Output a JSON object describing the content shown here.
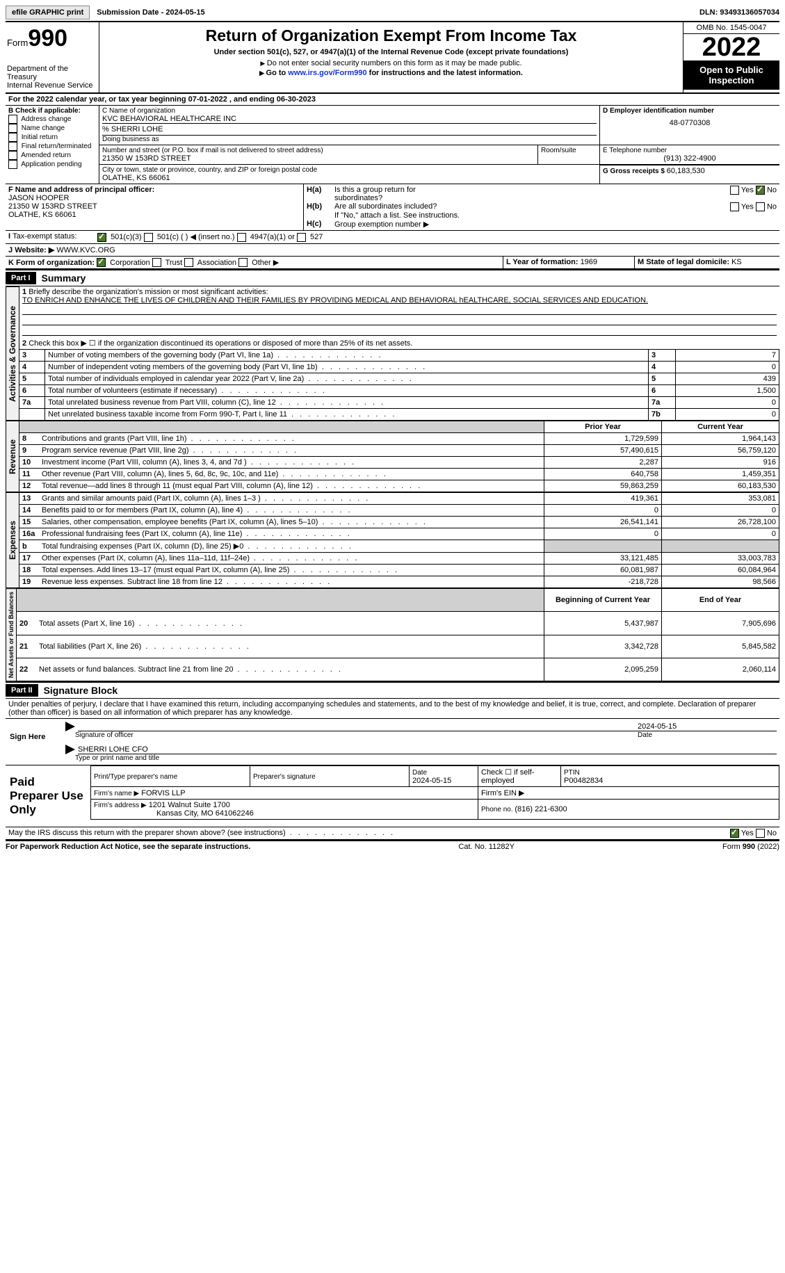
{
  "topbar": {
    "btn1": "efile GRAPHIC print",
    "subdate_label": "Submission Date - ",
    "subdate": "2024-05-15",
    "dln_label": "DLN: ",
    "dln": "93493136057034"
  },
  "header": {
    "form_label": "Form",
    "form_num": "990",
    "dept": "Department of the Treasury",
    "irs": "Internal Revenue Service",
    "title": "Return of Organization Exempt From Income Tax",
    "sub": "Under section 501(c), 527, or 4947(a)(1) of the Internal Revenue Code (except private foundations)",
    "line2": "Do not enter social security numbers on this form as it may be made public.",
    "line3a": "Go to ",
    "line3link": "www.irs.gov/Form990",
    "line3b": " for instructions and the latest information.",
    "omb": "OMB No. 1545-0047",
    "year": "2022",
    "otp": "Open to Public Inspection"
  },
  "sectionA": {
    "a_line": "For the 2022 calendar year, or tax year beginning 07-01-2022     , and ending 06-30-2023",
    "b_label": "B Check if applicable:",
    "b_opts": [
      "Address change",
      "Name change",
      "Initial return",
      "Final return/terminated",
      "Amended return",
      "Application pending"
    ],
    "c_label": "C Name of organization",
    "org": "KVC BEHAVIORAL HEALTHCARE INC",
    "care": "% SHERRI LOHE",
    "dba": "Doing business as",
    "street_label": "Number and street (or P.O. box if mail is not delivered to street address)",
    "room": "Room/suite",
    "street": "21350 W 153RD STREET",
    "city_label": "City or town, state or province, country, and ZIP or foreign postal code",
    "city": "OLATHE, KS  66061",
    "d_label": "D Employer identification number",
    "ein": "48-0770308",
    "e_label": "E Telephone number",
    "phone": "(913) 322-4900",
    "g_label": "G Gross receipts $ ",
    "gross": "60,183,530",
    "f_label": "F  Name and address of principal officer:",
    "officer": "JASON HOOPER",
    "officer_addr1": "21350 W 153RD STREET",
    "officer_addr2": "OLATHE, KS  66061",
    "h_a": "Is this a group return for",
    "h_a2": "subordinates?",
    "h_b": "Are all subordinates included?",
    "h_note": "If \"No,\" attach a list. See instructions.",
    "h_c": "Group exemption number ▶",
    "yes": "Yes",
    "no": "No",
    "i_label": "Tax-exempt status:",
    "i_501c3": "501(c)(3)",
    "i_501c": "501(c) (  ) ◀ (insert no.)",
    "i_4947": "4947(a)(1) or",
    "i_527": "527",
    "j_label": "Website: ▶",
    "website": "WWW.KVC.ORG",
    "k_label": "K Form of organization:",
    "k_corp": "Corporation",
    "k_trust": "Trust",
    "k_assoc": "Association",
    "k_other": "Other ▶",
    "l_label": "L Year of formation: ",
    "l_val": "1969",
    "m_label": "M State of legal domicile: ",
    "m_val": "KS"
  },
  "part1": {
    "label": "Part I",
    "title": "Summary",
    "l1a": "Briefly describe the organization's mission or most significant activities:",
    "l1b": "TO ENRICH AND ENHANCE THE LIVES OF CHILDREN AND THEIR FAMILIES BY PROVIDING MEDICAL AND BEHAVIORAL hEALTHCARE, SOCIAL SERVICES AND EDUCATION.",
    "l2": "Check this box ▶ ☐  if the organization discontinued its operations or disposed of more than 25% of its net assets.",
    "rows_ag": [
      {
        "n": "3",
        "t": "Number of voting members of the governing body (Part VI, line 1a)",
        "box": "3",
        "v": "7"
      },
      {
        "n": "4",
        "t": "Number of independent voting members of the governing body (Part VI, line 1b)",
        "box": "4",
        "v": "0"
      },
      {
        "n": "5",
        "t": "Total number of individuals employed in calendar year 2022 (Part V, line 2a)",
        "box": "5",
        "v": "439"
      },
      {
        "n": "6",
        "t": "Total number of volunteers (estimate if necessary)",
        "box": "6",
        "v": "1,500"
      },
      {
        "n": "7a",
        "t": "Total unrelated business revenue from Part VIII, column (C), line 12",
        "box": "7a",
        "v": "0"
      },
      {
        "n": "",
        "t": "Net unrelated business taxable income from Form 990-T, Part I, line 11",
        "box": "7b",
        "v": "0"
      }
    ],
    "col_prior": "Prior Year",
    "col_curr": "Current Year",
    "rev": [
      {
        "n": "8",
        "t": "Contributions and grants (Part VIII, line 1h)",
        "p": "1,729,599",
        "c": "1,964,143"
      },
      {
        "n": "9",
        "t": "Program service revenue (Part VIII, line 2g)",
        "p": "57,490,615",
        "c": "56,759,120"
      },
      {
        "n": "10",
        "t": "Investment income (Part VIII, column (A), lines 3, 4, and 7d )",
        "p": "2,287",
        "c": "916"
      },
      {
        "n": "11",
        "t": "Other revenue (Part VIII, column (A), lines 5, 6d, 8c, 9c, 10c, and 11e)",
        "p": "640,758",
        "c": "1,459,351"
      },
      {
        "n": "12",
        "t": "Total revenue—add lines 8 through 11 (must equal Part VIII, column (A), line 12)",
        "p": "59,863,259",
        "c": "60,183,530"
      }
    ],
    "exp": [
      {
        "n": "13",
        "t": "Grants and similar amounts paid (Part IX, column (A), lines 1–3 )",
        "p": "419,361",
        "c": "353,081"
      },
      {
        "n": "14",
        "t": "Benefits paid to or for members (Part IX, column (A), line 4)",
        "p": "0",
        "c": "0"
      },
      {
        "n": "15",
        "t": "Salaries, other compensation, employee benefits (Part IX, column (A), lines 5–10)",
        "p": "26,541,141",
        "c": "26,728,100"
      },
      {
        "n": "16a",
        "t": "Professional fundraising fees (Part IX, column (A), line 11e)",
        "p": "0",
        "c": "0"
      },
      {
        "n": "b",
        "t": "Total fundraising expenses (Part IX, column (D), line 25) ▶0",
        "p": "",
        "c": "",
        "shade": true
      },
      {
        "n": "17",
        "t": "Other expenses (Part IX, column (A), lines 11a–11d, 11f–24e)",
        "p": "33,121,485",
        "c": "33,003,783"
      },
      {
        "n": "18",
        "t": "Total expenses. Add lines 13–17 (must equal Part IX, column (A), line 25)",
        "p": "60,081,987",
        "c": "60,084,964"
      },
      {
        "n": "19",
        "t": "Revenue less expenses. Subtract line 18 from line 12",
        "p": "-218,728",
        "c": "98,566"
      }
    ],
    "col_beg": "Beginning of Current Year",
    "col_end": "End of Year",
    "net": [
      {
        "n": "20",
        "t": "Total assets (Part X, line 16)",
        "p": "5,437,987",
        "c": "7,905,696"
      },
      {
        "n": "21",
        "t": "Total liabilities (Part X, line 26)",
        "p": "3,342,728",
        "c": "5,845,582"
      },
      {
        "n": "22",
        "t": "Net assets or fund balances. Subtract line 21 from line 20",
        "p": "2,095,259",
        "c": "2,060,114"
      }
    ],
    "tab_ag": "Activities & Governance",
    "tab_rev": "Revenue",
    "tab_exp": "Expenses",
    "tab_net": "Net Assets or Fund Balances"
  },
  "part2": {
    "label": "Part II",
    "title": "Signature Block",
    "decl": "Under penalties of perjury, I declare that I have examined this return, including accompanying schedules and statements, and to the best of my knowledge and belief, it is true, correct, and complete. Declaration of preparer (other than officer) is based on all information of which preparer has any knowledge.",
    "sign_here": "Sign Here",
    "sig_officer": "Signature of officer",
    "sig_date": "2024-05-15",
    "date_lbl": "Date",
    "officer_name": "SHERRI LOHE  CFO",
    "type_lbl": "Type or print name and title",
    "paid": "Paid Preparer Use Only",
    "pp_name_lbl": "Print/Type preparer's name",
    "pp_sig_lbl": "Preparer's signature",
    "pp_date_lbl": "Date",
    "pp_date": "2024-05-15",
    "pp_check": "Check ☐ if self-employed",
    "ptin_lbl": "PTIN",
    "ptin": "P00482834",
    "firm_name_lbl": "Firm's name      ▶",
    "firm_name": "FORVIS LLP",
    "firm_ein_lbl": "Firm's EIN ▶",
    "firm_addr_lbl": "Firm's address ▶",
    "firm_addr1": "1201 Walnut Suite 1700",
    "firm_addr2": "Kansas City, MO  641062246",
    "firm_phone_lbl": "Phone no. ",
    "firm_phone": "(816) 221-6300",
    "may_irs": "May the IRS discuss this return with the preparer shown above? (see instructions)"
  },
  "footer": {
    "l": "For Paperwork Reduction Act Notice, see the separate instructions.",
    "c": "Cat. No. 11282Y",
    "r": "Form 990 (2022)"
  }
}
